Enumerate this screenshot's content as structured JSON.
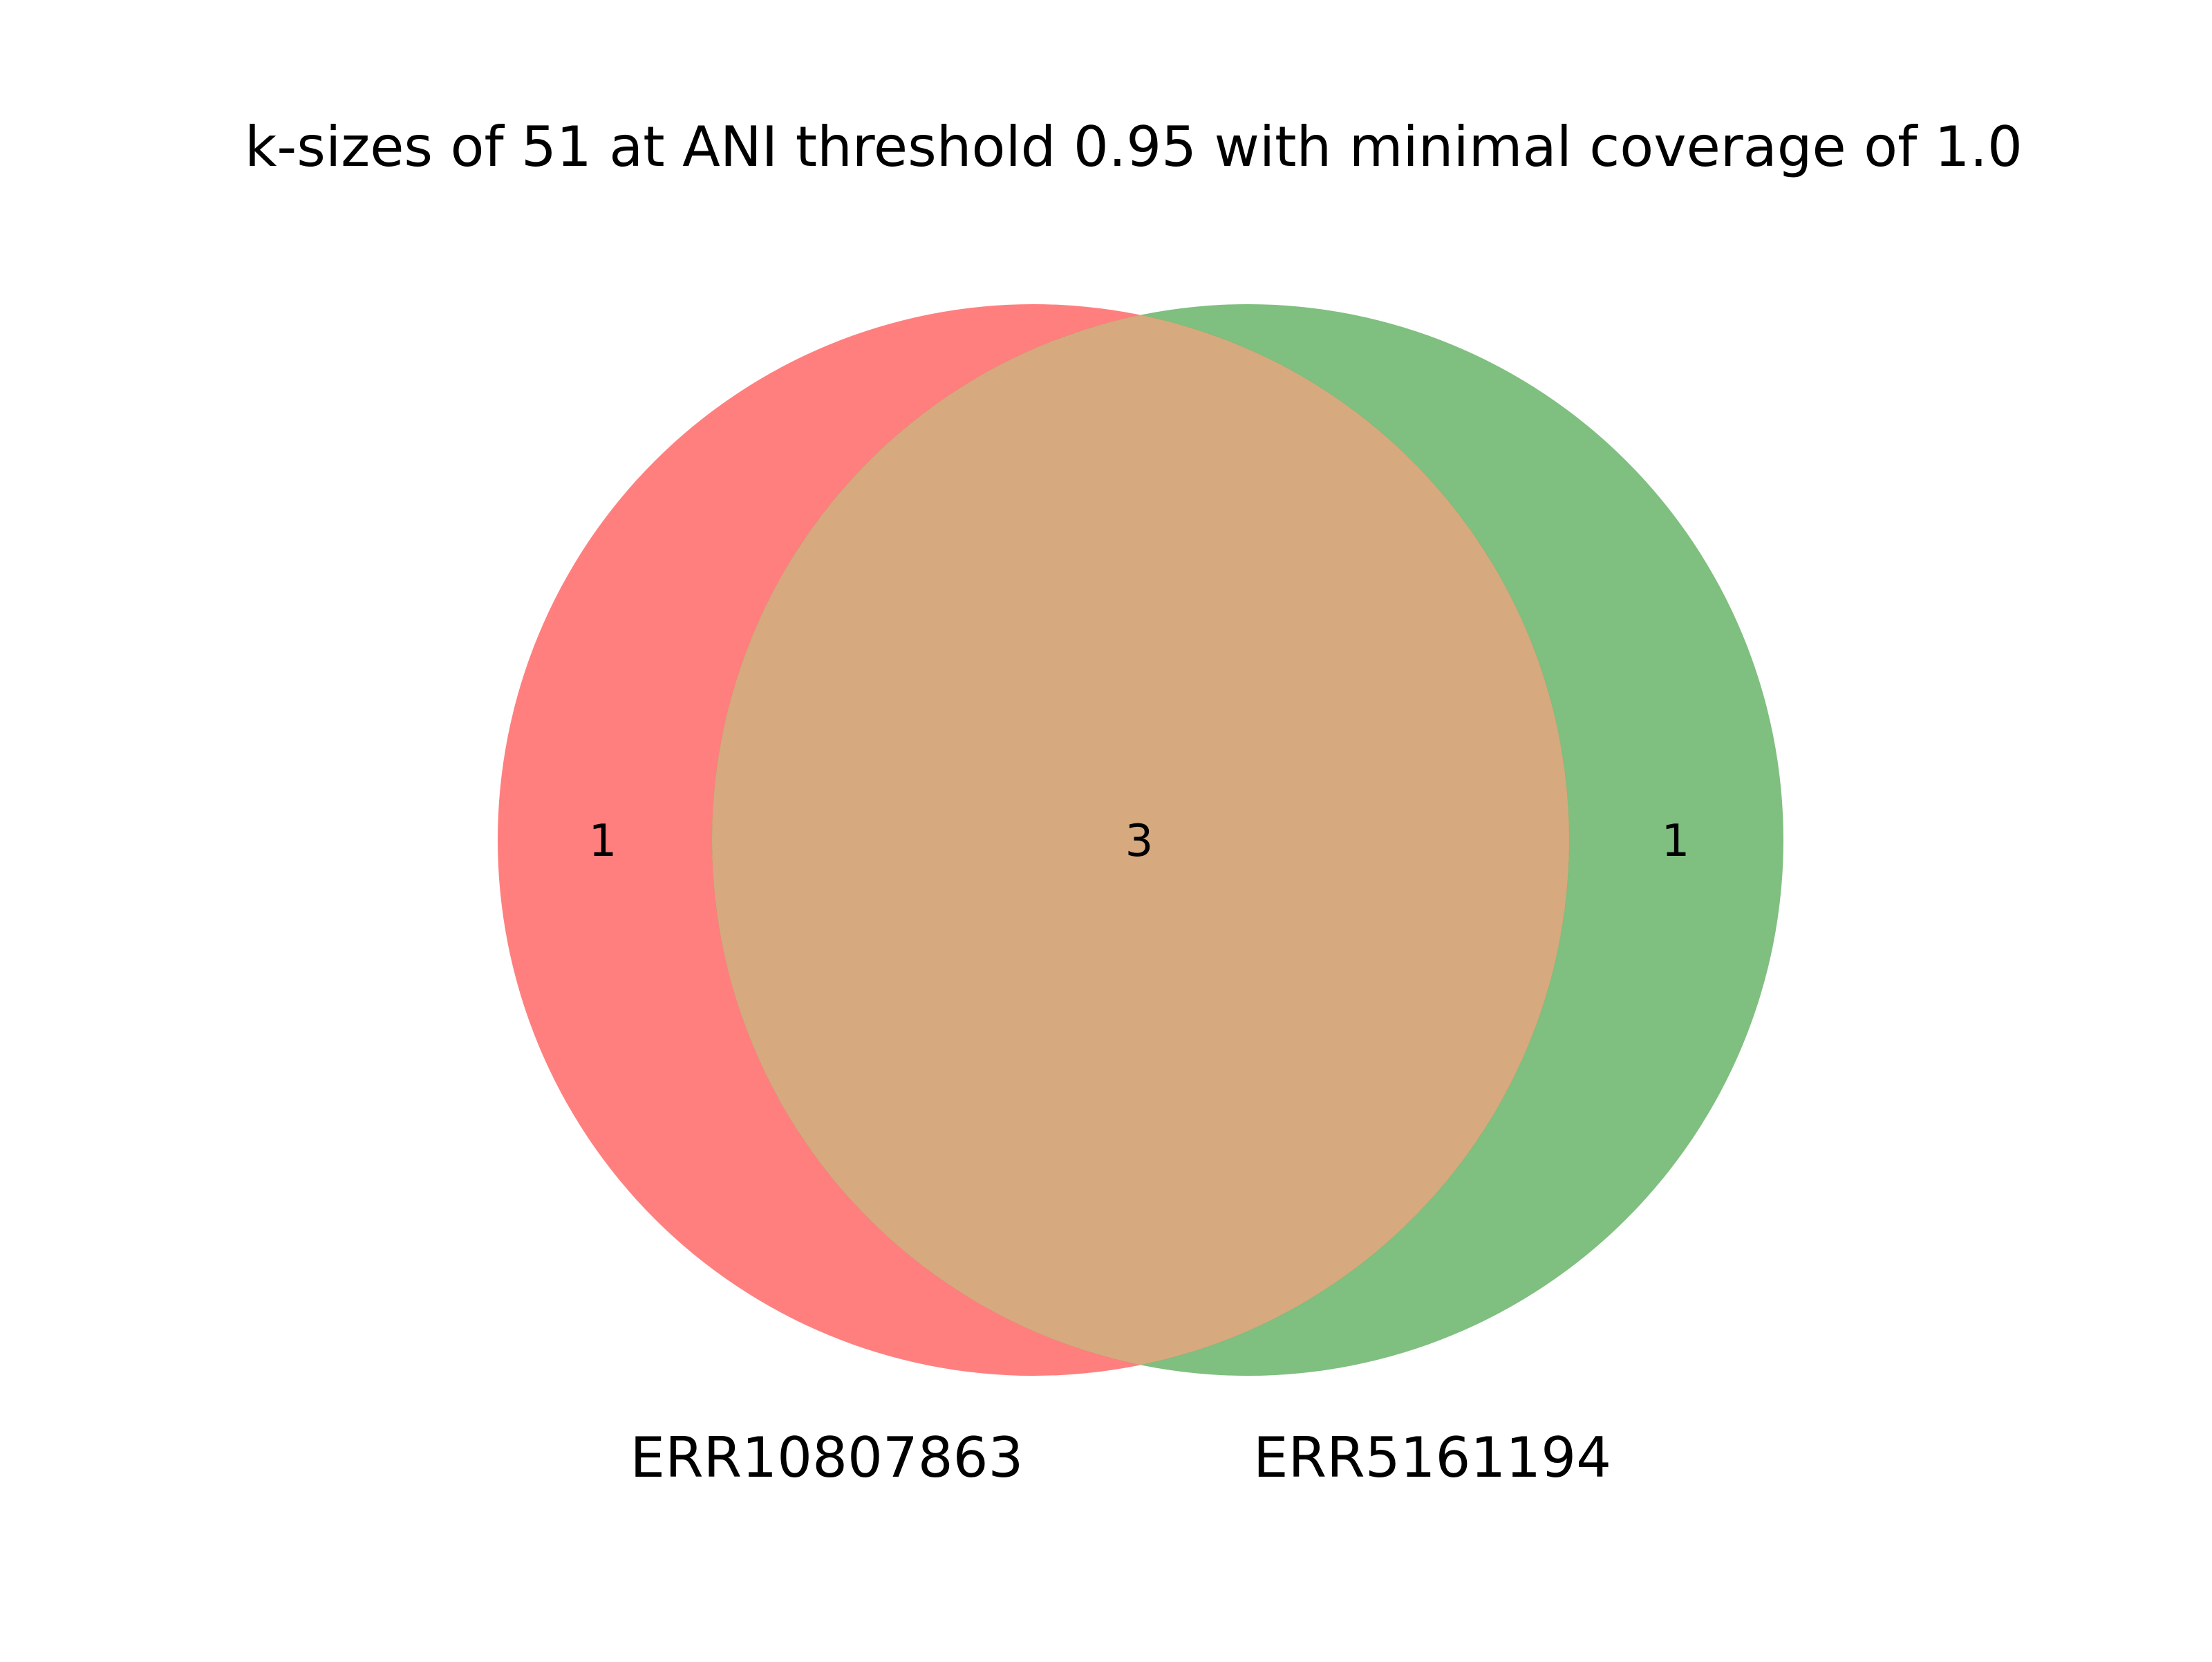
{
  "chart_data": {
    "type": "venn",
    "title": "k-sizes of 51 at ANI threshold 0.95 with minimal coverage of 1.0",
    "sets": [
      {
        "name": "ERR10807863",
        "color": "#ff0000"
      },
      {
        "name": "ERR5161194",
        "color": "#008000"
      }
    ],
    "regions": {
      "only_a": 1,
      "both": 3,
      "only_b": 1
    },
    "overlap_color": "#d6aa7e"
  }
}
